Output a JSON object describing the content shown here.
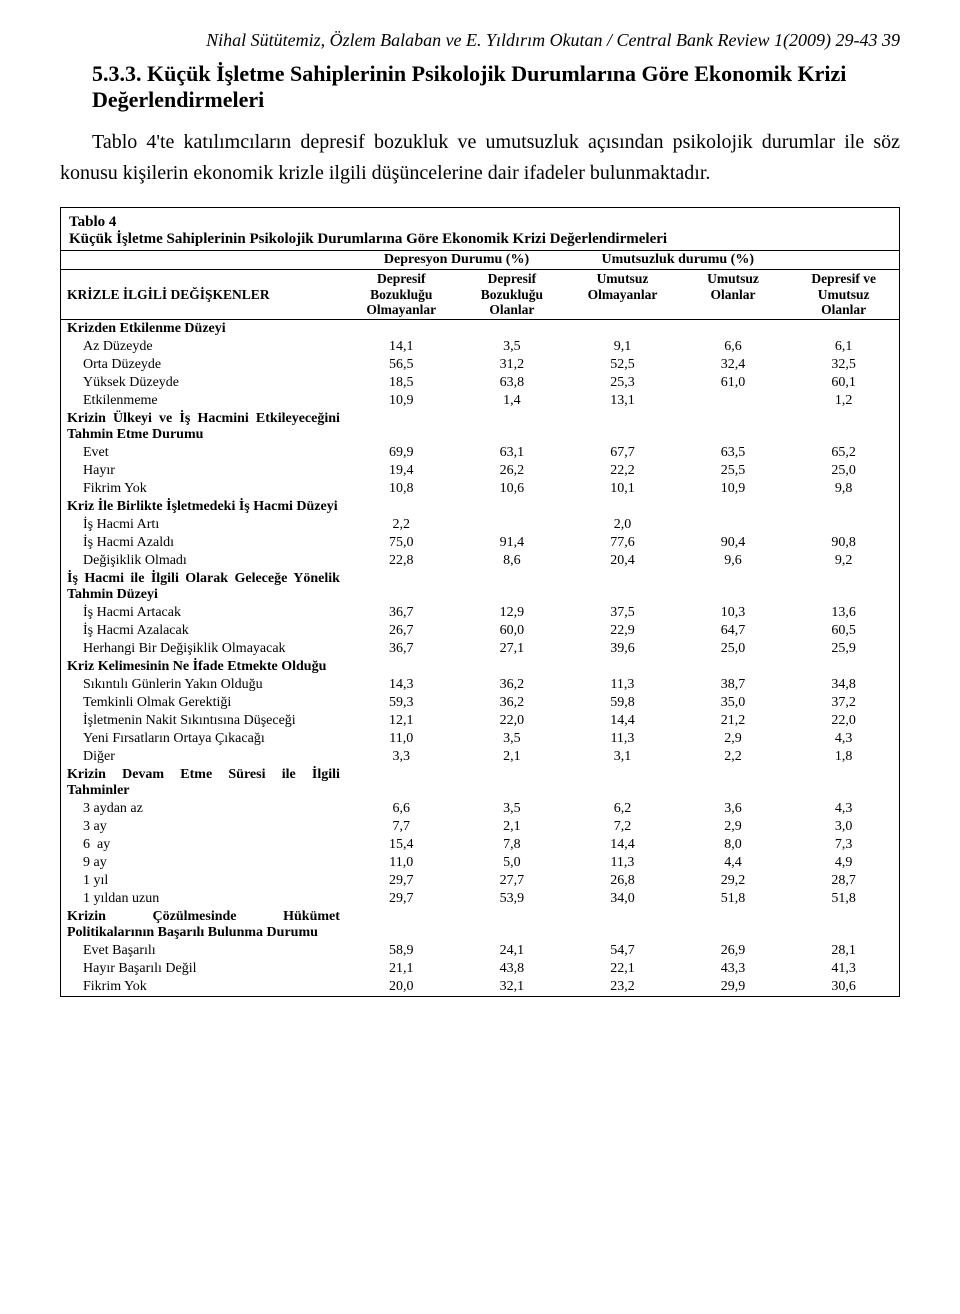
{
  "runningHead": "Nihal Sütütemiz, Özlem Balaban ve E. Yıldırım Okutan / Central Bank Review 1(2009) 29-43   39",
  "sectionHeading": "5.3.3. Küçük İşletme Sahiplerinin Psikolojik Durumlarına Göre Ekonomik Krizi Değerlendirmeleri",
  "bodyPara": "Tablo 4'te katılımcıların depresif bozukluk ve umutsuzluk açısından psikolojik durumlar ile söz konusu kişilerin ekonomik krizle ilgili düşüncelerine dair ifadeler bulunmaktadır.",
  "tableCaption": {
    "line1": "Tablo 4",
    "line2": "Küçük İşletme Sahiplerinin Psikolojik Durumlarına Göre Ekonomik Krizi Değerlendirmeleri"
  },
  "header": {
    "rowLabel": "KRİZLE İLGİLİ DEĞİŞKENLER",
    "group1": "Depresyon Durumu (%)",
    "group2": "Umutsuzluk durumu (%)",
    "sub": [
      "Depresif\nBozukluğu\nOlmayanlar",
      "Depresif\nBozukluğu\nOlanlar",
      "Umutsuz\nOlmayanlar",
      "Umutsuz\nOlanlar",
      "Depresif ve\nUmutsuz\nOlanlar"
    ]
  },
  "colors": {
    "text": "#000000",
    "bg": "#ffffff",
    "rule": "#000000"
  },
  "fonts": {
    "body_pt": 20,
    "table_pt": 14,
    "caption_pt": 15,
    "heading_pt": 22
  },
  "rows": [
    {
      "type": "group",
      "label": "Krizden Etkilenme Düzeyi"
    },
    {
      "type": "indent",
      "label": "Az Düzeyde",
      "v": [
        "14,1",
        "3,5",
        "9,1",
        "6,6",
        "6,1"
      ]
    },
    {
      "type": "indent",
      "label": "Orta Düzeyde",
      "v": [
        "56,5",
        "31,2",
        "52,5",
        "32,4",
        "32,5"
      ]
    },
    {
      "type": "indent",
      "label": "Yüksek Düzeyde",
      "v": [
        "18,5",
        "63,8",
        "25,3",
        "61,0",
        "60,1"
      ]
    },
    {
      "type": "indent",
      "label": "Etkilenmeme",
      "v": [
        "10,9",
        "1,4",
        "13,1",
        "",
        "1,2"
      ]
    },
    {
      "type": "group",
      "label": "Krizin Ülkeyi ve İş Hacmini Etkileyeceğini Tahmin Etme Durumu"
    },
    {
      "type": "indent",
      "label": "Evet",
      "v": [
        "69,9",
        "63,1",
        "67,7",
        "63,5",
        "65,2"
      ]
    },
    {
      "type": "indent",
      "label": "Hayır",
      "v": [
        "19,4",
        "26,2",
        "22,2",
        "25,5",
        "25,0"
      ]
    },
    {
      "type": "indent",
      "label": "Fikrim Yok",
      "v": [
        "10,8",
        "10,6",
        "10,1",
        "10,9",
        "9,8"
      ]
    },
    {
      "type": "group",
      "label": "Kriz İle Birlikte İşletmedeki İş Hacmi Düzeyi"
    },
    {
      "type": "indent",
      "label": "İş Hacmi Artı",
      "v": [
        "2,2",
        "",
        "2,0",
        "",
        ""
      ]
    },
    {
      "type": "indent",
      "label": "İş Hacmi Azaldı",
      "v": [
        "75,0",
        "91,4",
        "77,6",
        "90,4",
        "90,8"
      ]
    },
    {
      "type": "indent",
      "label": "Değişiklik Olmadı",
      "v": [
        "22,8",
        "8,6",
        "20,4",
        "9,6",
        "9,2"
      ]
    },
    {
      "type": "group",
      "label": "İş Hacmi ile İlgili Olarak Geleceğe Yönelik Tahmin Düzeyi"
    },
    {
      "type": "indent",
      "label": "İş Hacmi Artacak",
      "v": [
        "36,7",
        "12,9",
        "37,5",
        "10,3",
        "13,6"
      ]
    },
    {
      "type": "indent",
      "label": "İş Hacmi Azalacak",
      "v": [
        "26,7",
        "60,0",
        "22,9",
        "64,7",
        "60,5"
      ]
    },
    {
      "type": "indent",
      "label": "Herhangi Bir Değişiklik Olmayacak",
      "v": [
        "36,7",
        "27,1",
        "39,6",
        "25,0",
        "25,9"
      ]
    },
    {
      "type": "group",
      "label": "Kriz Kelimesinin Ne İfade Etmekte Olduğu"
    },
    {
      "type": "indent",
      "label": "Sıkıntılı Günlerin Yakın Olduğu",
      "v": [
        "14,3",
        "36,2",
        "11,3",
        "38,7",
        "34,8"
      ]
    },
    {
      "type": "indent",
      "label": "Temkinli Olmak Gerektiği",
      "v": [
        "59,3",
        "36,2",
        "59,8",
        "35,0",
        "37,2"
      ]
    },
    {
      "type": "indent",
      "label": "İşletmenin Nakit Sıkıntısına Düşeceği",
      "v": [
        "12,1",
        "22,0",
        "14,4",
        "21,2",
        "22,0"
      ]
    },
    {
      "type": "indent",
      "label": "Yeni Fırsatların Ortaya Çıkacağı",
      "v": [
        "11,0",
        "3,5",
        "11,3",
        "2,9",
        "4,3"
      ]
    },
    {
      "type": "indent",
      "label": "Diğer",
      "v": [
        "3,3",
        "2,1",
        "3,1",
        "2,2",
        "1,8"
      ]
    },
    {
      "type": "group",
      "label": "Krizin Devam Etme Süresi ile İlgili Tahminler"
    },
    {
      "type": "indent",
      "label": "3 aydan az",
      "v": [
        "6,6",
        "3,5",
        "6,2",
        "3,6",
        "4,3"
      ]
    },
    {
      "type": "indent",
      "label": "3 ay",
      "v": [
        "7,7",
        "2,1",
        "7,2",
        "2,9",
        "3,0"
      ]
    },
    {
      "type": "indent",
      "label": "6  ay",
      "v": [
        "15,4",
        "7,8",
        "14,4",
        "8,0",
        "7,3"
      ]
    },
    {
      "type": "indent",
      "label": "9 ay",
      "v": [
        "11,0",
        "5,0",
        "11,3",
        "4,4",
        "4,9"
      ]
    },
    {
      "type": "indent",
      "label": "1 yıl",
      "v": [
        "29,7",
        "27,7",
        "26,8",
        "29,2",
        "28,7"
      ]
    },
    {
      "type": "indent",
      "label": "1 yıldan uzun",
      "v": [
        "29,7",
        "53,9",
        "34,0",
        "51,8",
        "51,8"
      ]
    },
    {
      "type": "group",
      "label": "Krizin Çözülmesinde Hükümet Politikalarının Başarılı Bulunma Durumu"
    },
    {
      "type": "indent",
      "label": "Evet Başarılı",
      "v": [
        "58,9",
        "24,1",
        "54,7",
        "26,9",
        "28,1"
      ]
    },
    {
      "type": "indent",
      "label": "Hayır Başarılı Değil",
      "v": [
        "21,1",
        "43,8",
        "22,1",
        "43,3",
        "41,3"
      ]
    },
    {
      "type": "indent",
      "label": "Fikrim Yok",
      "v": [
        "20,0",
        "32,1",
        "23,2",
        "29,9",
        "30,6"
      ]
    }
  ]
}
